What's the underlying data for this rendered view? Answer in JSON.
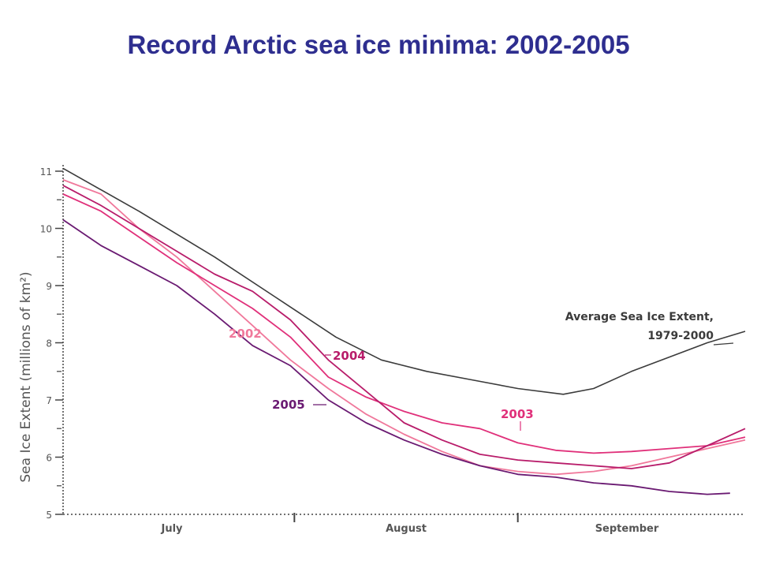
{
  "slide": {
    "title": "Record Arctic sea ice minima:  2002-2005"
  },
  "chart_data": {
    "type": "line",
    "title": "Record Arctic sea ice minima:  2002-2005",
    "xlabel": "",
    "ylabel": "Sea Ice Extent (millions of km²)",
    "ylim": [
      5,
      11
    ],
    "yticks": [
      "5",
      "6",
      "7",
      "8",
      "9",
      "10",
      "11"
    ],
    "xticks": [
      "July",
      "August",
      "September"
    ],
    "grid": false,
    "x": [
      0,
      15,
      30,
      45,
      60,
      75,
      90
    ],
    "series": [
      {
        "name": "Average Sea Ice Extent, 1979-2000",
        "color": "#3b3b3b",
        "label_lines": [
          "Average Sea Ice Extent,",
          "1979-2000"
        ],
        "points": [
          [
            0,
            11.05
          ],
          [
            10,
            10.3
          ],
          [
            20,
            9.5
          ],
          [
            28,
            8.8
          ],
          [
            36,
            8.1
          ],
          [
            42,
            7.7
          ],
          [
            48,
            7.5
          ],
          [
            54,
            7.35
          ],
          [
            60,
            7.2
          ],
          [
            66,
            7.1
          ],
          [
            70,
            7.2
          ],
          [
            75,
            7.5
          ],
          [
            80,
            7.75
          ],
          [
            85,
            8.0
          ],
          [
            90,
            8.2
          ]
        ]
      },
      {
        "name": "2002",
        "color": "#f0789b",
        "label_lines": [
          "2002"
        ],
        "points": [
          [
            0,
            10.85
          ],
          [
            5,
            10.6
          ],
          [
            10,
            10.0
          ],
          [
            15,
            9.5
          ],
          [
            20,
            8.9
          ],
          [
            25,
            8.3
          ],
          [
            30,
            7.7
          ],
          [
            35,
            7.2
          ],
          [
            40,
            6.75
          ],
          [
            45,
            6.4
          ],
          [
            50,
            6.1
          ],
          [
            55,
            5.85
          ],
          [
            60,
            5.75
          ],
          [
            65,
            5.7
          ],
          [
            70,
            5.75
          ],
          [
            75,
            5.85
          ],
          [
            80,
            6.0
          ],
          [
            85,
            6.15
          ],
          [
            90,
            6.3
          ]
        ]
      },
      {
        "name": "2003",
        "color": "#e0307a",
        "label_lines": [
          "2003"
        ],
        "points": [
          [
            0,
            10.6
          ],
          [
            5,
            10.3
          ],
          [
            10,
            9.85
          ],
          [
            15,
            9.4
          ],
          [
            20,
            9.0
          ],
          [
            25,
            8.6
          ],
          [
            30,
            8.1
          ],
          [
            35,
            7.4
          ],
          [
            40,
            7.05
          ],
          [
            45,
            6.8
          ],
          [
            50,
            6.6
          ],
          [
            55,
            6.5
          ],
          [
            60,
            6.25
          ],
          [
            65,
            6.12
          ],
          [
            70,
            6.07
          ],
          [
            75,
            6.1
          ],
          [
            80,
            6.15
          ],
          [
            85,
            6.2
          ],
          [
            90,
            6.35
          ]
        ]
      },
      {
        "name": "2004",
        "color": "#b81c6a",
        "label_lines": [
          "2004"
        ],
        "points": [
          [
            0,
            10.75
          ],
          [
            5,
            10.4
          ],
          [
            10,
            10.0
          ],
          [
            15,
            9.6
          ],
          [
            20,
            9.2
          ],
          [
            25,
            8.9
          ],
          [
            30,
            8.4
          ],
          [
            35,
            7.7
          ],
          [
            40,
            7.15
          ],
          [
            45,
            6.6
          ],
          [
            50,
            6.3
          ],
          [
            55,
            6.05
          ],
          [
            60,
            5.95
          ],
          [
            65,
            5.9
          ],
          [
            70,
            5.85
          ],
          [
            75,
            5.8
          ],
          [
            80,
            5.9
          ],
          [
            85,
            6.2
          ],
          [
            90,
            6.5
          ]
        ]
      },
      {
        "name": "2005",
        "color": "#6a1a72",
        "label_lines": [
          "2005"
        ],
        "points": [
          [
            0,
            10.15
          ],
          [
            5,
            9.7
          ],
          [
            10,
            9.35
          ],
          [
            15,
            9.0
          ],
          [
            20,
            8.5
          ],
          [
            25,
            7.95
          ],
          [
            30,
            7.6
          ],
          [
            35,
            7.0
          ],
          [
            40,
            6.6
          ],
          [
            45,
            6.3
          ],
          [
            50,
            6.05
          ],
          [
            55,
            5.85
          ],
          [
            60,
            5.7
          ],
          [
            65,
            5.65
          ],
          [
            70,
            5.55
          ],
          [
            75,
            5.5
          ],
          [
            80,
            5.4
          ],
          [
            85,
            5.35
          ],
          [
            88,
            5.37
          ]
        ]
      }
    ]
  }
}
